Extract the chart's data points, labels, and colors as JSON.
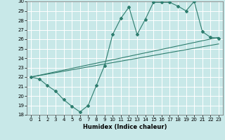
{
  "xlabel": "Humidex (Indice chaleur)",
  "xlim": [
    -0.5,
    23.5
  ],
  "ylim": [
    18,
    30
  ],
  "xticks": [
    0,
    1,
    2,
    3,
    4,
    5,
    6,
    7,
    8,
    9,
    10,
    11,
    12,
    13,
    14,
    15,
    16,
    17,
    18,
    19,
    20,
    21,
    22,
    23
  ],
  "yticks": [
    18,
    19,
    20,
    21,
    22,
    23,
    24,
    25,
    26,
    27,
    28,
    29,
    30
  ],
  "bg_color": "#c8e8e8",
  "line_color": "#2e7d6e",
  "grid_color": "#ffffff",
  "line1_x": [
    0,
    1,
    2,
    3,
    4,
    5,
    6,
    7,
    8,
    9,
    10,
    11,
    12,
    13,
    14,
    15,
    16,
    17,
    18,
    19,
    20,
    21,
    22,
    23
  ],
  "line1_y": [
    22.0,
    21.8,
    21.1,
    20.5,
    19.6,
    18.9,
    18.3,
    19.0,
    21.1,
    23.2,
    26.5,
    28.2,
    29.4,
    26.5,
    28.1,
    29.9,
    29.9,
    29.9,
    29.5,
    29.0,
    30.0,
    26.8,
    26.2,
    26.1
  ],
  "line2_x": [
    0,
    23
  ],
  "line2_y": [
    22.0,
    26.2
  ],
  "line3_x": [
    0,
    23
  ],
  "line3_y": [
    22.0,
    25.5
  ]
}
